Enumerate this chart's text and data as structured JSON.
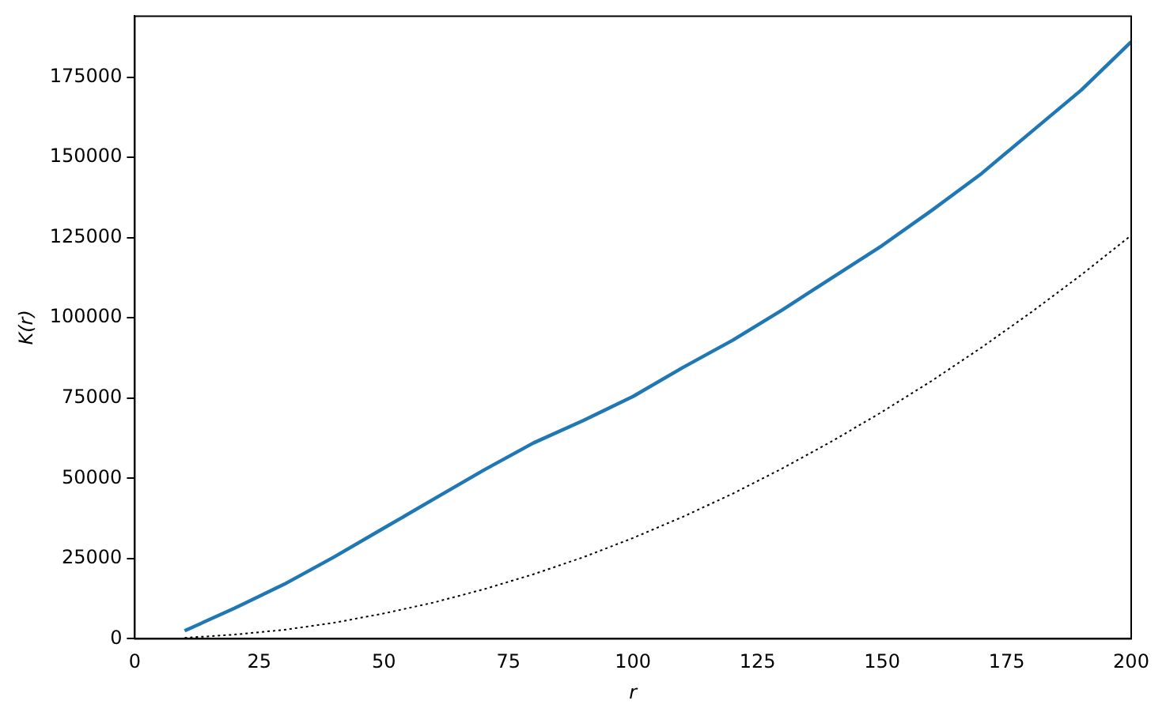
{
  "chart_data": {
    "type": "line",
    "xlabel": "r",
    "ylabel": "K(r)",
    "xlim": [
      0,
      200
    ],
    "xticks": [
      0,
      25,
      50,
      75,
      100,
      125,
      150,
      175,
      200
    ],
    "ylim": [
      0,
      194000
    ],
    "yticks": [
      0,
      25000,
      50000,
      75000,
      100000,
      125000,
      150000,
      175000
    ],
    "grid": false,
    "legend": false,
    "marker": "none",
    "series": [
      {
        "color": "#1f77b4",
        "line_style": "solid",
        "x": [
          10,
          20,
          30,
          40,
          50,
          60,
          70,
          80,
          90,
          100,
          110,
          120,
          130,
          140,
          150,
          160,
          170,
          180,
          190,
          200
        ],
        "values": [
          2500,
          9500,
          17000,
          25500,
          34500,
          43500,
          52500,
          61000,
          68000,
          75500,
          84500,
          93000,
          102500,
          112500,
          122500,
          133500,
          145000,
          158000,
          171000,
          186000
        ]
      },
      {
        "color": "#000000",
        "line_style": "dotted",
        "x": [
          10,
          20,
          30,
          40,
          50,
          60,
          70,
          80,
          90,
          100,
          110,
          120,
          130,
          140,
          150,
          160,
          170,
          180,
          190,
          200
        ],
        "values": [
          300,
          1300,
          2800,
          5000,
          7900,
          11300,
          15400,
          20100,
          25400,
          31400,
          38000,
          45200,
          53100,
          61600,
          70700,
          80400,
          90800,
          101800,
          113400,
          125700
        ]
      }
    ]
  }
}
